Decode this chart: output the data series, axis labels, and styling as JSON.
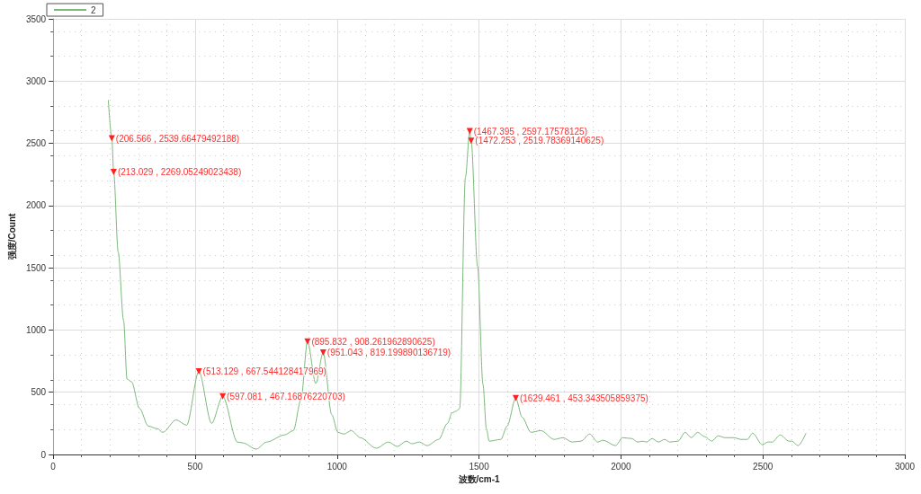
{
  "chart_data": {
    "type": "line",
    "xlabel": "波数/cm-1",
    "ylabel": "强度/Count",
    "xlim": [
      0,
      3000
    ],
    "xticks": [
      0,
      500,
      1000,
      1500,
      2000,
      2500,
      3000
    ],
    "ylim": [
      0,
      3500
    ],
    "yticks": [
      0,
      500,
      1000,
      1500,
      2000,
      2500,
      3000,
      3500
    ],
    "grid": true,
    "legend": "top left",
    "marker": "none",
    "line_style": "solid",
    "series": [
      {
        "name": "2",
        "color": "#7cb87c",
        "x": [
          194,
          206.566,
          213.029,
          229,
          248,
          260,
          276,
          304,
          335,
          367,
          386,
          433,
          470,
          513.129,
          558,
          597.081,
          649,
          668,
          715,
          752,
          815,
          846,
          873,
          895.832,
          925,
          951.043,
          981,
          1003,
          1024,
          1050,
          1082,
          1138,
          1181,
          1212,
          1244,
          1264,
          1290,
          1317,
          1358,
          1389,
          1405,
          1421,
          1432,
          1452,
          1467.395,
          1472.253,
          1495,
          1514,
          1526,
          1536,
          1577,
          1599,
          1629.461,
          1652,
          1683,
          1718,
          1765,
          1796,
          1828,
          1859,
          1890,
          1918,
          1937,
          1981,
          2006,
          2038,
          2059,
          2075,
          2091,
          2110,
          2132,
          2154,
          2172,
          2201,
          2226,
          2248,
          2270,
          2295,
          2320,
          2342,
          2367,
          2398,
          2423,
          2445,
          2464,
          2498,
          2517,
          2533,
          2561,
          2592,
          2602,
          2624,
          2652
        ],
        "values": [
          2850,
          2539.66479492188,
          2269.05249023438,
          1625,
          1076,
          606,
          584,
          371,
          228,
          207,
          178,
          278,
          235,
          667.544128417969,
          250,
          467.16876220703,
          100,
          93,
          43,
          100,
          157,
          192,
          442,
          908.261962890625,
          570,
          819.199890136719,
          321,
          178,
          164,
          192,
          135,
          50,
          100,
          64,
          107,
          86,
          100,
          71,
          121,
          250,
          335,
          349,
          371,
          2224,
          2597.17578125,
          2519.78369140625,
          1511,
          563,
          207,
          107,
          121,
          228,
          453.343505859375,
          299,
          178,
          192,
          121,
          135,
          100,
          107,
          164,
          100,
          114,
          71,
          135,
          128,
          100,
          107,
          100,
          128,
          100,
          121,
          100,
          107,
          178,
          135,
          178,
          143,
          107,
          150,
          135,
          135,
          121,
          121,
          171,
          78,
          100,
          100,
          157,
          107,
          107,
          71,
          171
        ]
      }
    ],
    "annotations": [
      {
        "text": "(206.566 , 2539.66479492188)",
        "x": 206.566,
        "y": 2539.66479492188
      },
      {
        "text": "(213.029 , 2269.05249023438)",
        "x": 213.029,
        "y": 2269.05249023438
      },
      {
        "text": "(513.129 , 667.544128417969)",
        "x": 513.129,
        "y": 667.544128417969
      },
      {
        "text": "(597.081 , 467.16876220703)",
        "x": 597.081,
        "y": 467.16876220703
      },
      {
        "text": "(895.832 , 908.261962890625)",
        "x": 895.832,
        "y": 908.261962890625
      },
      {
        "text": "(951.043 , 819.199890136719)",
        "x": 951.043,
        "y": 819.199890136719
      },
      {
        "text": "(1467.395 , 2597.17578125)",
        "x": 1467.395,
        "y": 2597.17578125
      },
      {
        "text": "(1472.253 , 2519.78369140625)",
        "x": 1472.253,
        "y": 2519.78369140625
      },
      {
        "text": "(1629.461 , 453.343505859375)",
        "x": 1629.461,
        "y": 453.343505859375
      }
    ]
  }
}
